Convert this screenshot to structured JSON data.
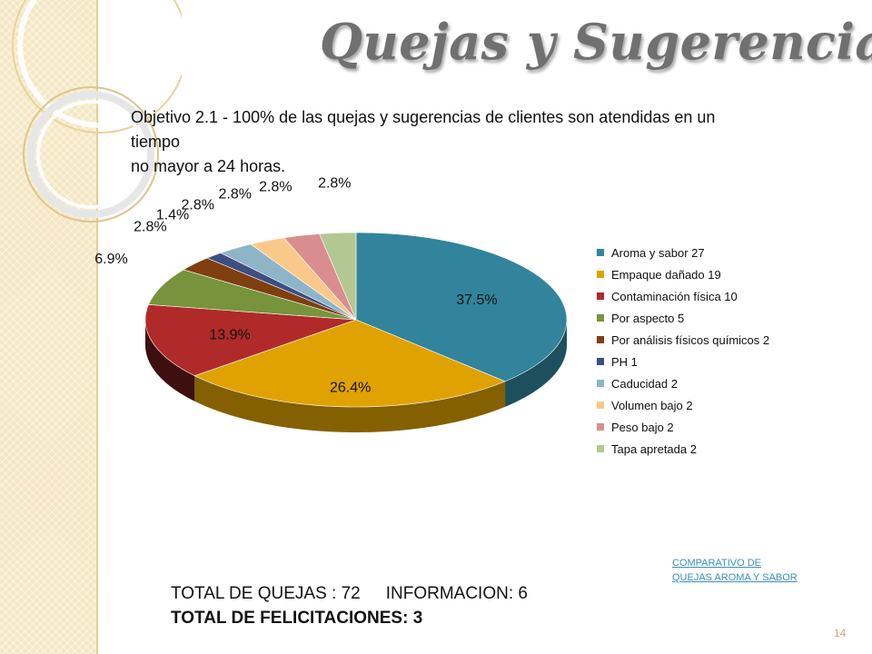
{
  "slide": {
    "title": "Quejas y Sugerencias",
    "objective_lines": [
      "Objetivo 2.1 - 100% de las quejas y sugerencias de clientes son atendidas en un",
      "tiempo",
      "no mayor a 24 horas."
    ],
    "totals": {
      "quejas": "TOTAL DE QUEJAS : 72",
      "informacion": "INFORMACION:  6",
      "felicitaciones": "TOTAL DE FELICITACIONES: 3"
    },
    "link": "COMPARATIVO DE QUEJAS AROMA Y SABOR",
    "page_number": "14"
  },
  "chart_data": {
    "type": "pie",
    "style": "3d-pie",
    "legend_position": "right",
    "slices": [
      {
        "legend": "Aroma y sabor     27",
        "value": 27,
        "pct_label": "37.5%",
        "color": "#31849b"
      },
      {
        "legend": "Empaque dañado  19",
        "value": 19,
        "pct_label": "26.4%",
        "color": "#e0a200"
      },
      {
        "legend": "Contaminación física 10",
        "value": 10,
        "pct_label": "13.9%",
        "color": "#b02a2a"
      },
      {
        "legend": "Por aspecto 5",
        "value": 5,
        "pct_label": "6.9%",
        "color": "#77933c"
      },
      {
        "legend": "Por análisis físicos químicos 2",
        "value": 2,
        "pct_label": "2.8%",
        "color": "#7f3f0f"
      },
      {
        "legend": "PH 1",
        "value": 1,
        "pct_label": "1.4%",
        "color": "#3d4f80"
      },
      {
        "legend": "Caducidad  2",
        "value": 2,
        "pct_label": "2.8%",
        "color": "#8eb4c8"
      },
      {
        "legend": "Volumen bajo 2",
        "value": 2,
        "pct_label": "2.8%",
        "color": "#fac98a"
      },
      {
        "legend": "Peso bajo  2",
        "value": 2,
        "pct_label": "2.8%",
        "color": "#d98d8f"
      },
      {
        "legend": "Tapa apretada  2",
        "value": 2,
        "pct_label": "2.8%",
        "color": "#b3c793"
      }
    ]
  }
}
